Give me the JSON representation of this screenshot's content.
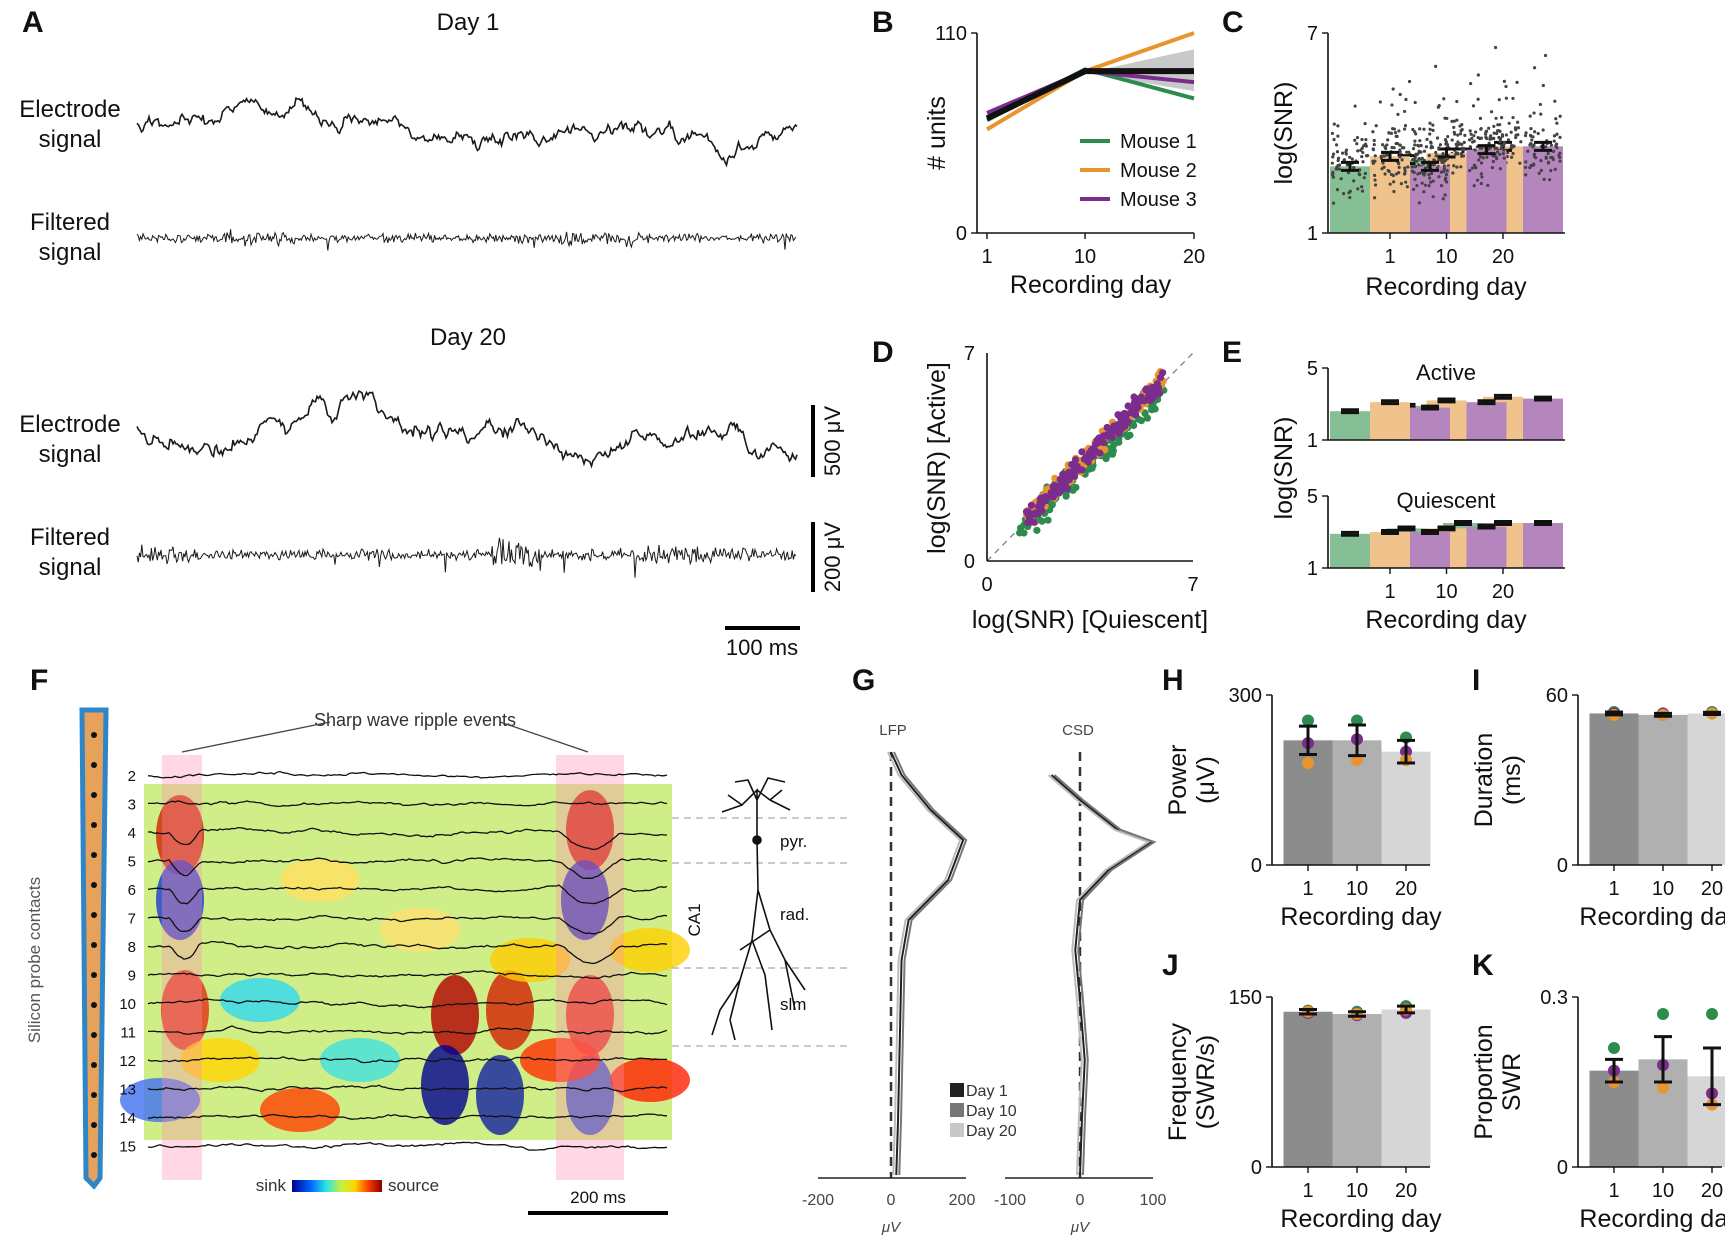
{
  "panel_letters": [
    "A",
    "B",
    "C",
    "D",
    "E",
    "F",
    "G",
    "H",
    "I",
    "J",
    "K"
  ],
  "colors": {
    "mouse1": "#2e8b4e",
    "mouse2": "#e8952e",
    "mouse3": "#7b2d8e",
    "bar_green": "#86bf94",
    "bar_orange": "#f1c38c",
    "bar_purple": "#b586bd",
    "day1": "#8c8c8c",
    "day10": "#b0b0b0",
    "day20": "#d6d6d6"
  },
  "panel_A": {
    "day1_title": "Day 1",
    "day20_title": "Day 20",
    "electrode_l1": "Electrode",
    "electrode_l2": "signal",
    "filtered_l1": "Filtered",
    "filtered_l2": "signal",
    "scale_v1": "500 μV",
    "scale_v2": "200 μV",
    "scale_t": "100 ms"
  },
  "panel_F": {
    "title": "Sharp wave ripple events",
    "probe_label": "Silicon probe contacts",
    "channels": [
      "2",
      "3",
      "4",
      "5",
      "6",
      "7",
      "8",
      "9",
      "10",
      "11",
      "12",
      "13",
      "14",
      "15"
    ],
    "sink": "sink",
    "source": "source",
    "scale": "200 ms",
    "layers": [
      "pyr.",
      "rad.",
      "slm"
    ],
    "region": "CA1"
  },
  "panel_G": {
    "lfp": "LFP",
    "csd": "CSD",
    "unit": "μV",
    "lfp_ticks": [
      "-200",
      "0",
      "200"
    ],
    "csd_ticks": [
      "-100",
      "0",
      "100"
    ],
    "legend": [
      "Day 1",
      "Day 10",
      "Day 20"
    ]
  },
  "chart_data": [
    {
      "panel": "B",
      "type": "line",
      "xlabel": "Recording day",
      "ylabel": "# units",
      "xticks": [
        "1",
        "10",
        "20"
      ],
      "yticks": [
        "0",
        "110"
      ],
      "ylim": [
        0,
        110
      ],
      "x": [
        1,
        10,
        20
      ],
      "series": [
        {
          "name": "Mouse 1",
          "values": [
            62,
            90,
            74
          ]
        },
        {
          "name": "Mouse 2",
          "values": [
            57,
            89,
            110
          ]
        },
        {
          "name": "Mouse 3",
          "values": [
            66,
            89,
            83
          ]
        },
        {
          "values": [
            63,
            89,
            89
          ]
        }
      ]
    },
    {
      "panel": "C",
      "type": "bar",
      "xlabel": "Recording day",
      "ylabel": "log(SNR)",
      "categories": [
        "1",
        "10",
        "20"
      ],
      "yticks": [
        "1",
        "7"
      ],
      "ylim": [
        1,
        7
      ],
      "series": [
        {
          "name": "Mouse 1",
          "values": [
            3.0,
            3.2,
            3.4
          ]
        },
        {
          "name": "Mouse 2",
          "values": [
            3.3,
            3.4,
            3.6
          ]
        },
        {
          "name": "Mouse 3",
          "values": [
            3.0,
            3.5,
            3.6
          ]
        }
      ]
    },
    {
      "panel": "D",
      "type": "scatter",
      "xlabel": "log(SNR) [Quiescent]",
      "ylabel": "log(SNR) [Active]",
      "xticks": [
        "0",
        "7"
      ],
      "yticks": [
        "0",
        "7"
      ],
      "xlim": [
        0,
        7
      ],
      "ylim": [
        0,
        7
      ]
    },
    {
      "panel": "E",
      "type": "bar",
      "title": "Active",
      "ylabel": "log(SNR)",
      "categories": [
        "1",
        "10",
        "20"
      ],
      "yticks": [
        "1",
        "5"
      ],
      "ylim": [
        1,
        5
      ],
      "series": [
        {
          "name": "Mouse 1",
          "values": [
            2.6,
            2.9,
            2.7
          ]
        },
        {
          "name": "Mouse 2",
          "values": [
            3.1,
            3.2,
            3.4
          ]
        },
        {
          "name": "Mouse 3",
          "values": [
            2.8,
            3.1,
            3.3
          ]
        }
      ]
    },
    {
      "panel": "E2",
      "type": "bar",
      "title": "Quiescent",
      "xlabel": "Recording day",
      "ylabel": "log(SNR)",
      "categories": [
        "1",
        "10",
        "20"
      ],
      "yticks": [
        "1",
        "5"
      ],
      "ylim": [
        1,
        5
      ],
      "series": [
        {
          "name": "Mouse 1",
          "values": [
            2.9,
            3.2,
            3.5
          ]
        },
        {
          "name": "Mouse 2",
          "values": [
            3.0,
            3.2,
            3.5
          ]
        },
        {
          "name": "Mouse 3",
          "values": [
            3.0,
            3.3,
            3.5
          ]
        }
      ]
    },
    {
      "panel": "H",
      "type": "bar",
      "xlabel": "Recording day",
      "ylabel_l1": "Power",
      "ylabel_l2": "(μV)",
      "categories": [
        "1",
        "10",
        "20"
      ],
      "yticks": [
        "0",
        "300"
      ],
      "ylim": [
        0,
        300
      ],
      "values": [
        220,
        220,
        200
      ],
      "err": [
        25,
        27,
        20
      ],
      "points": [
        [
          255,
          215,
          180
        ],
        [
          255,
          222,
          185
        ],
        [
          225,
          200,
          185
        ]
      ]
    },
    {
      "panel": "I",
      "type": "bar",
      "xlabel": "Recording day",
      "ylabel_l1": "Duration",
      "ylabel_l2": "(ms)",
      "categories": [
        "1",
        "10",
        "20"
      ],
      "yticks": [
        "0",
        "60"
      ],
      "ylim": [
        0,
        60
      ],
      "values": [
        53.5,
        53,
        53.5
      ],
      "err": [
        0.5,
        0.5,
        0.4
      ],
      "points": [
        [
          54,
          53.5,
          53
        ],
        [
          53,
          53.5,
          53
        ],
        [
          54,
          53.5,
          53.5
        ]
      ]
    },
    {
      "panel": "J",
      "type": "bar",
      "xlabel": "Recording day",
      "ylabel_l1": "Frequency",
      "ylabel_l2": "(SWR/s)",
      "categories": [
        "1",
        "10",
        "20"
      ],
      "yticks": [
        "0",
        "150"
      ],
      "ylim": [
        0,
        150
      ],
      "values": [
        137,
        135,
        139
      ],
      "err": [
        2,
        2,
        3
      ],
      "points": [
        [
          138,
          136,
          137
        ],
        [
          137,
          134,
          135
        ],
        [
          142,
          136,
          139
        ]
      ]
    },
    {
      "panel": "K",
      "type": "bar",
      "xlabel": "Recording day",
      "ylabel_l1": "Proportion",
      "ylabel_l2": "SWR",
      "categories": [
        "1",
        "10",
        "20"
      ],
      "yticks": [
        "0",
        "0.3"
      ],
      "ylim": [
        0,
        0.3
      ],
      "values": [
        0.17,
        0.19,
        0.16
      ],
      "err": [
        0.02,
        0.04,
        0.05
      ],
      "points": [
        [
          0.21,
          0.17,
          0.15
        ],
        [
          0.27,
          0.18,
          0.14
        ],
        [
          0.27,
          0.13,
          0.11
        ]
      ]
    }
  ]
}
